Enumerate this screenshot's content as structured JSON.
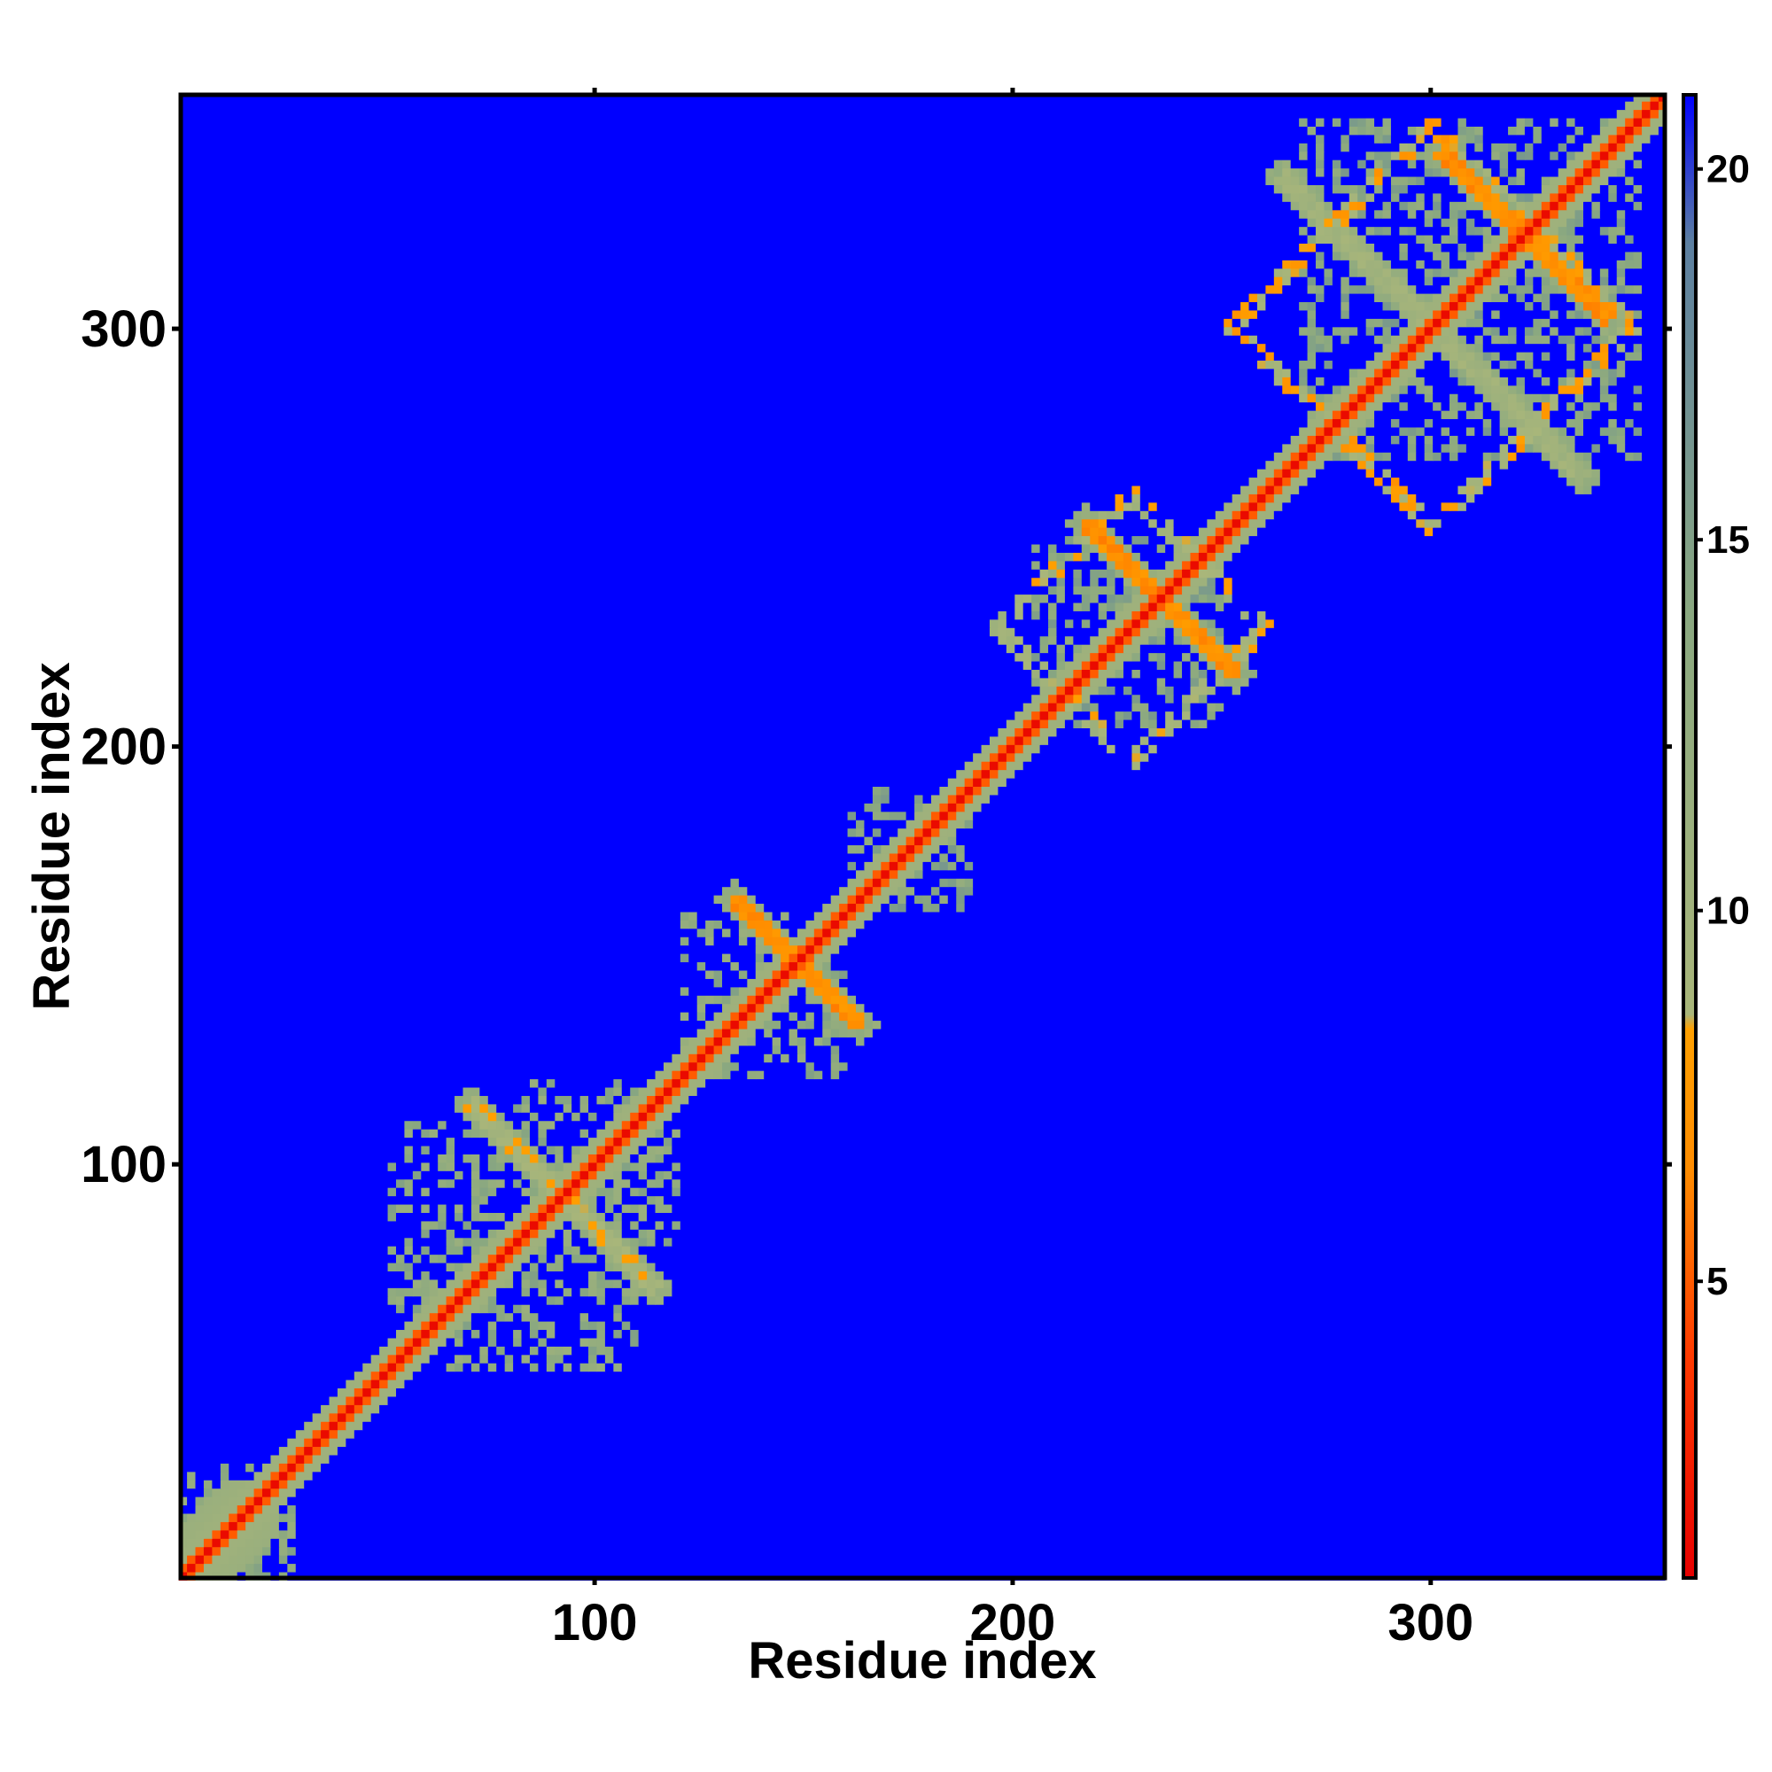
{
  "chart_data": {
    "type": "heatmap",
    "title": "",
    "xlabel": "Residue index",
    "ylabel": "Residue index",
    "xlim": [
      1,
      356
    ],
    "ylim": [
      1,
      356
    ],
    "xticks": [
      100,
      200,
      300
    ],
    "yticks": [
      100,
      200,
      300
    ],
    "matrix_symmetric": true,
    "background_value": 21,
    "diagonal": {
      "center_value": 1.5,
      "mid_value": 5,
      "halo_value": 10,
      "halo_width": 6,
      "start_halo_width": 12
    },
    "contact_features": [
      {
        "kind": "cross",
        "center": [
          148,
          148
        ],
        "half_length": 15,
        "value": 6
      },
      {
        "kind": "cross",
        "center": [
          235,
          235
        ],
        "half_length": 18,
        "value": 6
      },
      {
        "kind": "cross",
        "center": [
          322,
          322
        ],
        "half_length": 20,
        "value": 6
      },
      {
        "kind": "cross",
        "center": [
          300,
          300
        ],
        "half_length": 36,
        "value": 9
      },
      {
        "kind": "cross",
        "center": [
          92,
          92
        ],
        "half_length": 22,
        "value": 8
      },
      {
        "kind": "ring",
        "center": [
          300,
          300
        ],
        "radius": 24,
        "value": 7
      },
      {
        "kind": "ring",
        "center": [
          228,
          228
        ],
        "radius": 16,
        "value": 8
      },
      {
        "kind": "patch",
        "range_x": [
          50,
          85
        ],
        "range_y": [
          65,
          110
        ],
        "value": 11
      },
      {
        "kind": "patch",
        "range_x": [
          80,
          120
        ],
        "range_y": [
          85,
          118
        ],
        "value": 11
      },
      {
        "kind": "patch",
        "range_x": [
          120,
          158
        ],
        "range_y": [
          120,
          160
        ],
        "value": 11
      },
      {
        "kind": "patch",
        "range_x": [
          165,
          188
        ],
        "range_y": [
          160,
          190
        ],
        "value": 12
      },
      {
        "kind": "patch",
        "range_x": [
          268,
          350
        ],
        "range_y": [
          268,
          350
        ],
        "value": 12
      },
      {
        "kind": "patch",
        "range_x": [
          205,
          250
        ],
        "range_y": [
          205,
          250
        ],
        "value": 12
      },
      {
        "kind": "patch",
        "range_x": [
          14,
          28
        ],
        "range_y": [
          1,
          22
        ],
        "value": 11
      }
    ],
    "colorbar": {
      "range": [
        1,
        21
      ],
      "ticks": [
        5,
        10,
        15,
        20
      ],
      "stops": [
        {
          "value": 1,
          "color": "#e60000"
        },
        {
          "value": 4,
          "color": "#ff3a00"
        },
        {
          "value": 6.5,
          "color": "#ff8c00"
        },
        {
          "value": 8.4,
          "color": "#ffa000"
        },
        {
          "value": 8.6,
          "color": "#a9b67a"
        },
        {
          "value": 14,
          "color": "#8aa880"
        },
        {
          "value": 19,
          "color": "#5c7fa0"
        },
        {
          "value": 21,
          "color": "#0000ff"
        }
      ]
    }
  }
}
